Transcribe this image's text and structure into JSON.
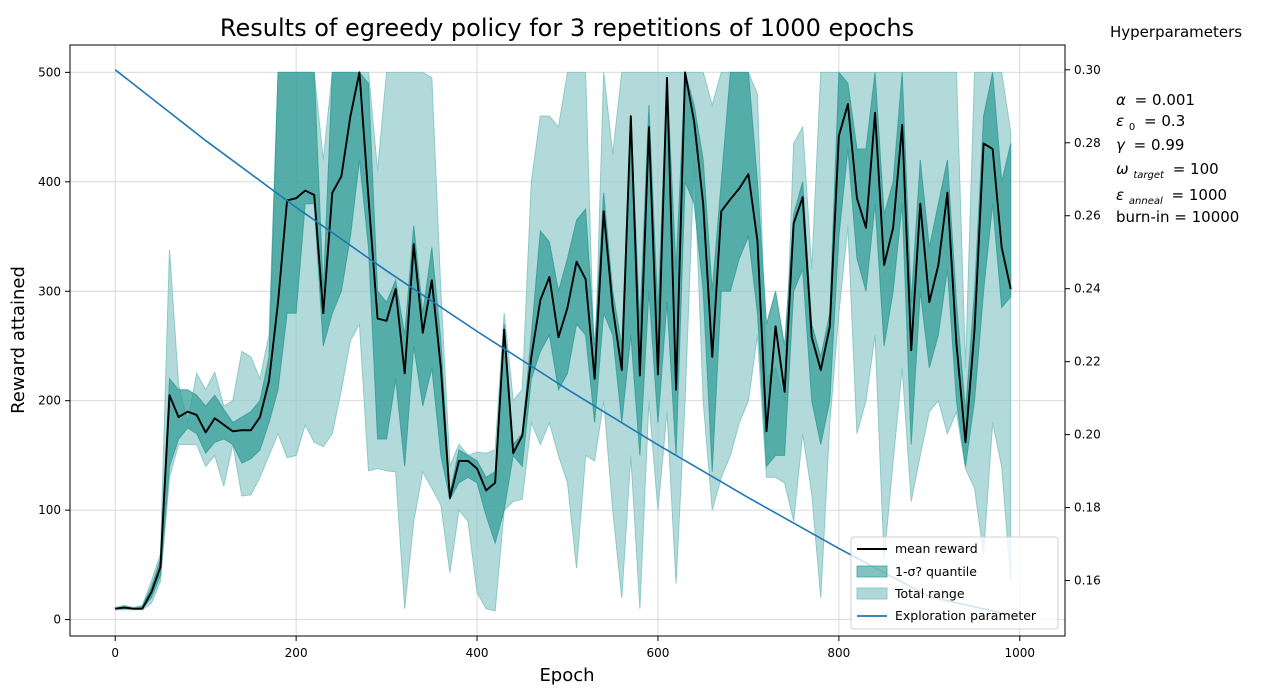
{
  "chart_data": {
    "type": "line",
    "title": "Results of egreedy policy for 3 repetitions of 1000 epochs",
    "xlabel": "Epoch",
    "ylabel": "Reward attained",
    "xlim": [
      -50,
      1050
    ],
    "ylim": [
      -15,
      525
    ],
    "y2lim": [
      0.1448,
      0.3068
    ],
    "grid": true,
    "legend_position": "lower-right",
    "x_ticks": [
      0,
      200,
      400,
      600,
      800,
      1000
    ],
    "y_ticks": [
      0,
      100,
      200,
      300,
      400,
      500
    ],
    "y2_ticks": [
      0.16,
      0.18,
      0.2,
      0.22,
      0.24,
      0.26,
      0.28,
      0.3
    ],
    "x_tick_labels": [
      "0",
      "200",
      "400",
      "600",
      "800",
      "1000"
    ],
    "y_tick_labels": [
      "0",
      "100",
      "200",
      "300",
      "400",
      "500"
    ],
    "y2_tick_labels": [
      "0.16",
      "0.18",
      "0.20",
      "0.22",
      "0.24",
      "0.26",
      "0.28",
      "0.30"
    ],
    "x": [
      0,
      10,
      20,
      30,
      40,
      50,
      60,
      70,
      80,
      90,
      100,
      110,
      120,
      130,
      140,
      150,
      160,
      170,
      180,
      190,
      200,
      210,
      220,
      230,
      240,
      250,
      260,
      270,
      280,
      290,
      300,
      310,
      320,
      330,
      340,
      350,
      360,
      370,
      380,
      390,
      400,
      410,
      420,
      430,
      440,
      450,
      460,
      470,
      480,
      490,
      500,
      510,
      520,
      530,
      540,
      550,
      560,
      570,
      580,
      590,
      600,
      610,
      620,
      630,
      640,
      650,
      660,
      670,
      680,
      690,
      700,
      710,
      720,
      730,
      740,
      750,
      760,
      770,
      780,
      790,
      800,
      810,
      820,
      830,
      840,
      850,
      860,
      870,
      880,
      890,
      900,
      910,
      920,
      930,
      940,
      950,
      960,
      970,
      980,
      990
    ],
    "series": [
      {
        "name": "mean reward",
        "color": "#000000",
        "values": [
          10,
          11,
          10,
          10,
          25,
          48,
          205,
          185,
          190,
          187,
          171,
          184,
          178,
          172,
          173,
          173,
          185,
          218,
          290,
          383,
          385,
          392,
          388,
          280,
          390,
          405,
          460,
          500,
          385,
          275,
          273,
          302,
          225,
          343,
          262,
          310,
          230,
          111,
          145,
          145,
          138,
          118,
          125,
          265,
          152,
          168,
          240,
          292,
          313,
          258,
          285,
          327,
          311,
          220,
          373,
          285,
          228,
          460,
          223,
          450,
          224,
          495,
          210,
          500,
          455,
          380,
          240,
          373,
          384,
          394,
          407,
          346,
          172,
          268,
          208,
          362,
          386,
          258,
          228,
          268,
          442,
          471,
          385,
          358,
          463,
          324,
          358,
          452,
          246,
          380,
          290,
          324,
          390,
          252,
          162,
          265,
          435,
          430,
          340,
          302
        ]
      },
      {
        "name": "1-σ? quantile",
        "color": "#2f9b96",
        "lower": [
          10,
          10,
          10,
          10,
          20,
          40,
          140,
          165,
          175,
          170,
          152,
          162,
          165,
          160,
          143,
          147,
          155,
          180,
          210,
          280,
          280,
          380,
          380,
          250,
          280,
          300,
          350,
          420,
          340,
          165,
          165,
          220,
          140,
          250,
          195,
          230,
          150,
          110,
          125,
          130,
          125,
          95,
          70,
          100,
          150,
          140,
          220,
          245,
          260,
          210,
          225,
          270,
          260,
          180,
          280,
          260,
          180,
          260,
          150,
          300,
          180,
          290,
          150,
          400,
          380,
          300,
          135,
          300,
          300,
          330,
          350,
          280,
          140,
          150,
          150,
          300,
          320,
          200,
          160,
          200,
          350,
          430,
          330,
          300,
          380,
          250,
          300,
          380,
          160,
          300,
          230,
          260,
          320,
          200,
          140,
          200,
          300,
          380,
          285,
          295
        ],
        "upper": [
          10,
          12,
          10,
          12,
          30,
          55,
          220,
          210,
          210,
          205,
          195,
          205,
          192,
          180,
          185,
          190,
          200,
          240,
          500,
          500,
          500,
          500,
          500,
          300,
          500,
          500,
          500,
          500,
          490,
          300,
          290,
          310,
          260,
          360,
          280,
          340,
          255,
          115,
          155,
          150,
          145,
          130,
          135,
          270,
          160,
          170,
          260,
          355,
          345,
          300,
          330,
          365,
          375,
          250,
          390,
          300,
          250,
          460,
          270,
          470,
          280,
          495,
          320,
          500,
          470,
          420,
          300,
          400,
          500,
          500,
          500,
          400,
          270,
          300,
          250,
          370,
          400,
          270,
          240,
          280,
          500,
          490,
          430,
          430,
          500,
          370,
          400,
          500,
          290,
          420,
          340,
          380,
          420,
          290,
          190,
          300,
          460,
          500,
          400,
          435
        ]
      },
      {
        "name": "Total range",
        "color": "#8ec8c8",
        "lower": [
          9,
          9,
          9,
          9,
          15,
          35,
          130,
          160,
          160,
          160,
          140,
          150,
          122,
          160,
          113,
          114,
          130,
          150,
          170,
          148,
          150,
          178,
          162,
          158,
          170,
          210,
          255,
          270,
          136,
          138,
          136,
          135,
          10,
          90,
          135,
          120,
          105,
          43,
          100,
          90,
          25,
          10,
          8,
          100,
          108,
          110,
          180,
          160,
          180,
          150,
          125,
          47,
          150,
          145,
          200,
          100,
          20,
          150,
          10,
          200,
          100,
          190,
          33,
          200,
          420,
          200,
          100,
          130,
          150,
          180,
          200,
          260,
          130,
          130,
          125,
          90,
          170,
          115,
          20,
          180,
          280,
          360,
          170,
          200,
          260,
          55,
          145,
          230,
          108,
          150,
          190,
          200,
          170,
          190,
          138,
          120,
          60,
          180,
          140,
          35
        ],
        "upper": [
          11,
          13,
          11,
          13,
          35,
          60,
          338,
          215,
          180,
          225,
          210,
          226,
          195,
          200,
          245,
          240,
          220,
          260,
          500,
          500,
          500,
          500,
          500,
          420,
          500,
          500,
          500,
          500,
          500,
          410,
          500,
          500,
          500,
          500,
          500,
          495,
          300,
          140,
          160,
          150,
          153,
          152,
          155,
          280,
          200,
          210,
          400,
          460,
          460,
          450,
          500,
          500,
          500,
          220,
          500,
          425,
          500,
          500,
          500,
          500,
          500,
          500,
          500,
          500,
          500,
          500,
          470,
          500,
          500,
          500,
          500,
          480,
          220,
          230,
          200,
          435,
          450,
          320,
          500,
          500,
          500,
          500,
          500,
          500,
          500,
          500,
          500,
          500,
          500,
          500,
          500,
          500,
          500,
          500,
          230,
          500,
          500,
          500,
          500,
          445
        ]
      },
      {
        "name": "Exploration parameter",
        "color": "#1f77b4",
        "axis": "right",
        "x": [
          0,
          100,
          200,
          300,
          400,
          500,
          600,
          700,
          800,
          900,
          1000
        ],
        "values": [
          0.3,
          0.2806,
          0.2623,
          0.2449,
          0.2283,
          0.2124,
          0.1972,
          0.1827,
          0.1688,
          0.1556,
          0.15
        ]
      }
    ],
    "legend": [
      "mean reward",
      "1-σ? quantile",
      "Total range",
      "Exploration parameter"
    ]
  },
  "hyperparameters": {
    "title": "Hyperparameters",
    "alpha": {
      "symbol": "α",
      "value": "= 0.001"
    },
    "epsilon0": {
      "symbol": "ε",
      "sub": "0",
      "value": "= 0.3"
    },
    "gamma": {
      "symbol": "γ",
      "value": "= 0.99"
    },
    "omega": {
      "symbol": "ω",
      "sub": "target",
      "value": "= 100"
    },
    "eps_anneal": {
      "symbol": "ε",
      "sub": "anneal",
      "value": "= 1000"
    },
    "burnin": {
      "text": "burn-in = 10000"
    }
  }
}
